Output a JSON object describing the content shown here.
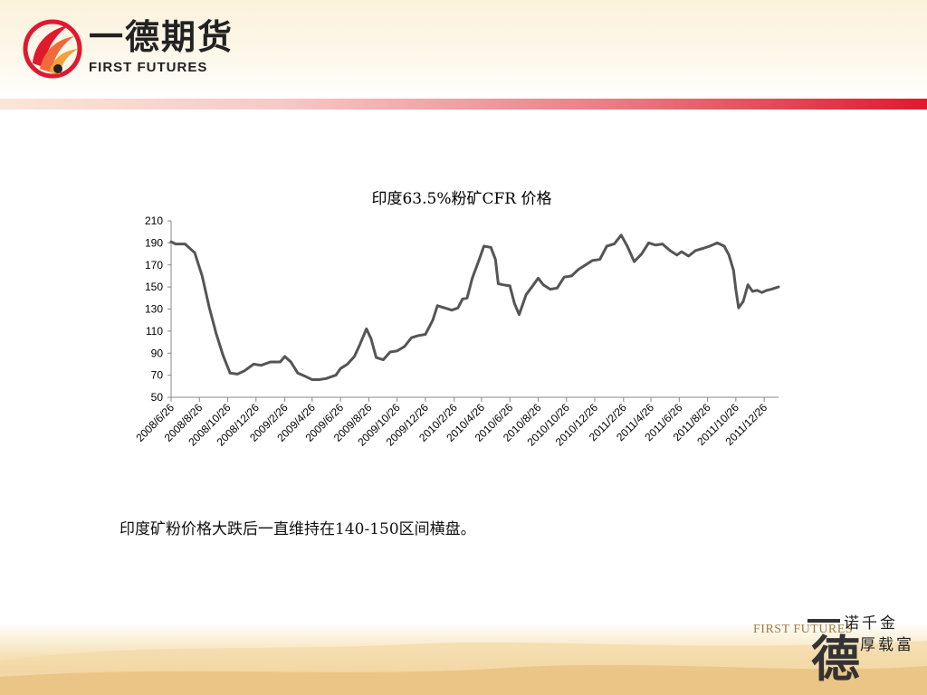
{
  "header": {
    "logo_cn": "一德期货",
    "logo_en": "FIRST FUTURES"
  },
  "footer": {
    "slogan_en": "FIRST FUTURES",
    "slogan_cn_line1": "诺千金",
    "slogan_cn_line2": "厚载富",
    "brush_char": "德"
  },
  "caption": "印度矿粉价格大跌后一直维持在140-150区间横盘。",
  "colors": {
    "line": "#555555",
    "axis": "#888888",
    "stripe_red": "#e0192f"
  },
  "chart_data": {
    "type": "line",
    "title": "印度63.5%粉矿CFR 价格",
    "xlabel": "",
    "ylabel": "",
    "ylim": [
      50,
      210
    ],
    "yticks": [
      50,
      70,
      90,
      110,
      130,
      150,
      170,
      190,
      210
    ],
    "grid": false,
    "x_start": "2008/6/26",
    "x_end": "2012/1/26",
    "x_ticks": [
      "2008/6/26",
      "2008/8/26",
      "2008/10/26",
      "2008/12/26",
      "2009/2/26",
      "2009/4/26",
      "2009/6/26",
      "2009/8/26",
      "2009/10/26",
      "2009/12/26",
      "2010/2/26",
      "2010/4/26",
      "2010/6/26",
      "2010/8/26",
      "2010/10/26",
      "2010/12/26",
      "2011/2/26",
      "2011/4/26",
      "2011/6/26",
      "2011/8/26",
      "2011/10/26",
      "2011/12/26"
    ],
    "points": [
      [
        "2008/6/26",
        191
      ],
      [
        "2008/7/6",
        189
      ],
      [
        "2008/7/26",
        189
      ],
      [
        "2008/8/16",
        181
      ],
      [
        "2008/9/1",
        160
      ],
      [
        "2008/9/16",
        132
      ],
      [
        "2008/10/1",
        108
      ],
      [
        "2008/10/16",
        88
      ],
      [
        "2008/10/31",
        72
      ],
      [
        "2008/11/16",
        71
      ],
      [
        "2008/12/1",
        74
      ],
      [
        "2008/12/21",
        80
      ],
      [
        "2009/1/6",
        79
      ],
      [
        "2009/1/26",
        82
      ],
      [
        "2009/2/16",
        82
      ],
      [
        "2009/2/26",
        87
      ],
      [
        "2009/3/11",
        82
      ],
      [
        "2009/3/26",
        72
      ],
      [
        "2009/4/11",
        69
      ],
      [
        "2009/4/26",
        66
      ],
      [
        "2009/5/11",
        66
      ],
      [
        "2009/5/26",
        67
      ],
      [
        "2009/6/16",
        70
      ],
      [
        "2009/6/26",
        76
      ],
      [
        "2009/7/11",
        80
      ],
      [
        "2009/7/26",
        87
      ],
      [
        "2009/8/6",
        97
      ],
      [
        "2009/8/21",
        112
      ],
      [
        "2009/8/31",
        103
      ],
      [
        "2009/9/11",
        86
      ],
      [
        "2009/9/26",
        84
      ],
      [
        "2009/10/11",
        91
      ],
      [
        "2009/10/26",
        92
      ],
      [
        "2009/11/11",
        96
      ],
      [
        "2009/11/26",
        104
      ],
      [
        "2009/12/11",
        106
      ],
      [
        "2009/12/26",
        107
      ],
      [
        "2010/1/11",
        120
      ],
      [
        "2010/1/21",
        133
      ],
      [
        "2010/2/6",
        131
      ],
      [
        "2010/2/21",
        129
      ],
      [
        "2010/3/6",
        131
      ],
      [
        "2010/3/16",
        139
      ],
      [
        "2010/3/26",
        140
      ],
      [
        "2010/4/6",
        158
      ],
      [
        "2010/4/21",
        175
      ],
      [
        "2010/5/1",
        187
      ],
      [
        "2010/5/16",
        186
      ],
      [
        "2010/5/26",
        175
      ],
      [
        "2010/6/1",
        153
      ],
      [
        "2010/6/11",
        152
      ],
      [
        "2010/6/26",
        151
      ],
      [
        "2010/7/6",
        135
      ],
      [
        "2010/7/16",
        125
      ],
      [
        "2010/7/31",
        143
      ],
      [
        "2010/8/16",
        152
      ],
      [
        "2010/8/26",
        158
      ],
      [
        "2010/9/6",
        152
      ],
      [
        "2010/9/21",
        148
      ],
      [
        "2010/10/6",
        149
      ],
      [
        "2010/10/21",
        159
      ],
      [
        "2010/11/6",
        160
      ],
      [
        "2010/11/21",
        166
      ],
      [
        "2010/12/6",
        170
      ],
      [
        "2010/12/21",
        174
      ],
      [
        "2011/1/6",
        175
      ],
      [
        "2011/1/21",
        187
      ],
      [
        "2011/2/6",
        189
      ],
      [
        "2011/2/21",
        197
      ],
      [
        "2011/3/6",
        187
      ],
      [
        "2011/3/21",
        173
      ],
      [
        "2011/4/6",
        180
      ],
      [
        "2011/4/21",
        190
      ],
      [
        "2011/5/6",
        188
      ],
      [
        "2011/5/21",
        189
      ],
      [
        "2011/6/6",
        183
      ],
      [
        "2011/6/21",
        179
      ],
      [
        "2011/7/1",
        182
      ],
      [
        "2011/7/16",
        178
      ],
      [
        "2011/7/31",
        183
      ],
      [
        "2011/8/16",
        185
      ],
      [
        "2011/8/31",
        187
      ],
      [
        "2011/9/16",
        190
      ],
      [
        "2011/10/1",
        187
      ],
      [
        "2011/10/11",
        179
      ],
      [
        "2011/10/21",
        165
      ],
      [
        "2011/10/26",
        148
      ],
      [
        "2011/11/1",
        131
      ],
      [
        "2011/11/11",
        137
      ],
      [
        "2011/11/21",
        152
      ],
      [
        "2011/12/1",
        146
      ],
      [
        "2011/12/11",
        147
      ],
      [
        "2011/12/21",
        145
      ],
      [
        "2012/1/1",
        147
      ],
      [
        "2012/1/11",
        148
      ],
      [
        "2012/1/26",
        150
      ]
    ]
  }
}
